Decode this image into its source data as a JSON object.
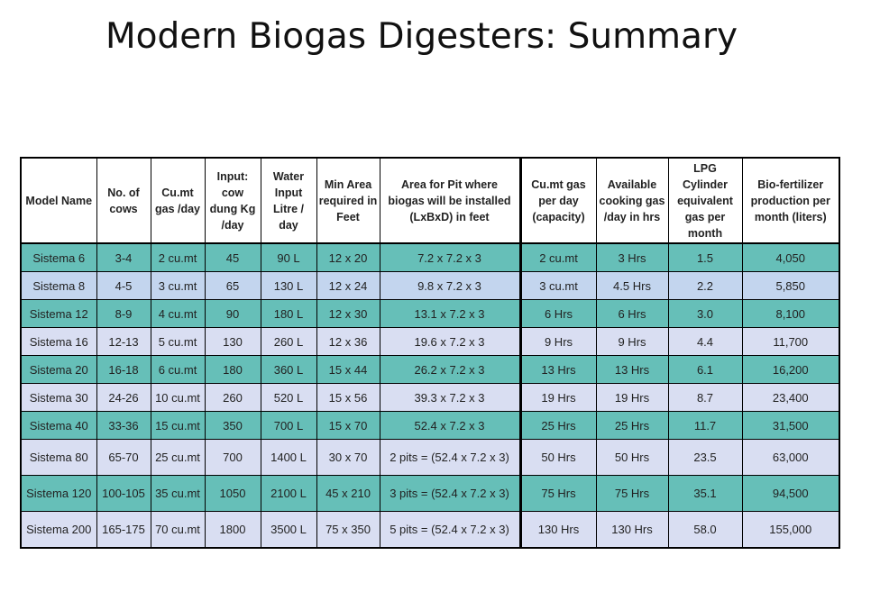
{
  "title": "Modern Biogas Digesters: Summary",
  "headers": [
    "Model Name",
    "No. of cows",
    "Cu.mt gas /day",
    "Input: cow dung Kg /day",
    "Water Input Litre / day",
    "Min Area required in Feet",
    "Area for Pit where biogas will be installed (LxBxD) in feet",
    "Cu.mt gas per day (capacity)",
    "Available cooking gas /day in hrs",
    "LPG Cylinder equivalent gas per month",
    "Bio-fertilizer production per month (liters)"
  ],
  "rows": [
    [
      "Sistema 6",
      "3-4",
      "2 cu.mt",
      "45",
      "90 L",
      "12 x 20",
      "7.2 x 7.2 x 3",
      "2 cu.mt",
      "3 Hrs",
      "1.5",
      "4,050"
    ],
    [
      "Sistema 8",
      "4-5",
      "3 cu.mt",
      "65",
      "130 L",
      "12 x 24",
      "9.8 x 7.2 x 3",
      "3 cu.mt",
      "4.5 Hrs",
      "2.2",
      "5,850"
    ],
    [
      "Sistema 12",
      "8-9",
      "4 cu.mt",
      "90",
      "180 L",
      "12 x 30",
      "13.1 x 7.2 x 3",
      "6 Hrs",
      "6 Hrs",
      "3.0",
      "8,100"
    ],
    [
      "Sistema 16",
      "12-13",
      "5 cu.mt",
      "130",
      "260 L",
      "12 x 36",
      "19.6 x 7.2 x 3",
      "9 Hrs",
      "9 Hrs",
      "4.4",
      "11,700"
    ],
    [
      "Sistema 20",
      "16-18",
      "6 cu.mt",
      "180",
      "360 L",
      "15 x 44",
      "26.2 x 7.2 x 3",
      "13 Hrs",
      "13 Hrs",
      "6.1",
      "16,200"
    ],
    [
      "Sistema 30",
      "24-26",
      "10 cu.mt",
      "260",
      "520 L",
      "15 x 56",
      "39.3 x 7.2 x 3",
      "19 Hrs",
      "19 Hrs",
      "8.7",
      "23,400"
    ],
    [
      "Sistema 40",
      "33-36",
      "15 cu.mt",
      "350",
      "700 L",
      "15 x 70",
      "52.4 x 7.2 x 3",
      "25 Hrs",
      "25 Hrs",
      "11.7",
      "31,500"
    ],
    [
      "Sistema 80",
      "65-70",
      "25 cu.mt",
      "700",
      "1400 L",
      "30 x 70",
      "2 pits = (52.4 x 7.2 x 3)",
      "50 Hrs",
      "50 Hrs",
      "23.5",
      "63,000"
    ],
    [
      "Sistema 120",
      "100-105",
      "35 cu.mt",
      "1050",
      "2100 L",
      "45 x 210",
      "3 pits = (52.4 x 7.2 x 3)",
      "75 Hrs",
      "75 Hrs",
      "35.1",
      "94,500"
    ],
    [
      "Sistema 200",
      "165-175",
      "70 cu.mt",
      "1800",
      "3500 L",
      "75 x 350",
      "5 pits = (52.4 x 7.2 x 3)",
      "130 Hrs",
      "130 Hrs",
      "58.0",
      "155,000"
    ]
  ],
  "row_colors": {
    "teal": "#66bfb8",
    "lavender": "#d9def2",
    "light_blue": "#c3d5ee"
  }
}
